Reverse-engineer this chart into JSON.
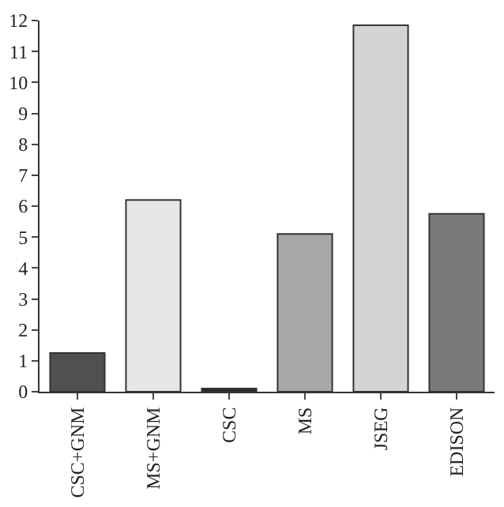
{
  "chart_data": {
    "type": "bar",
    "categories": [
      "CSC+GNM",
      "MS+GNM",
      "CSC",
      "MS",
      "JSEG",
      "EDISON"
    ],
    "values": [
      1.25,
      6.2,
      0.1,
      5.1,
      11.85,
      5.75
    ],
    "colors": [
      "#505050",
      "#e6e6e6",
      "#2a2a2a",
      "#a8a8a8",
      "#d4d4d4",
      "#7a7a7a"
    ],
    "ylim": [
      0,
      12
    ],
    "yticks": [
      0,
      1,
      2,
      3,
      4,
      5,
      6,
      7,
      8,
      9,
      10,
      11,
      12
    ]
  }
}
